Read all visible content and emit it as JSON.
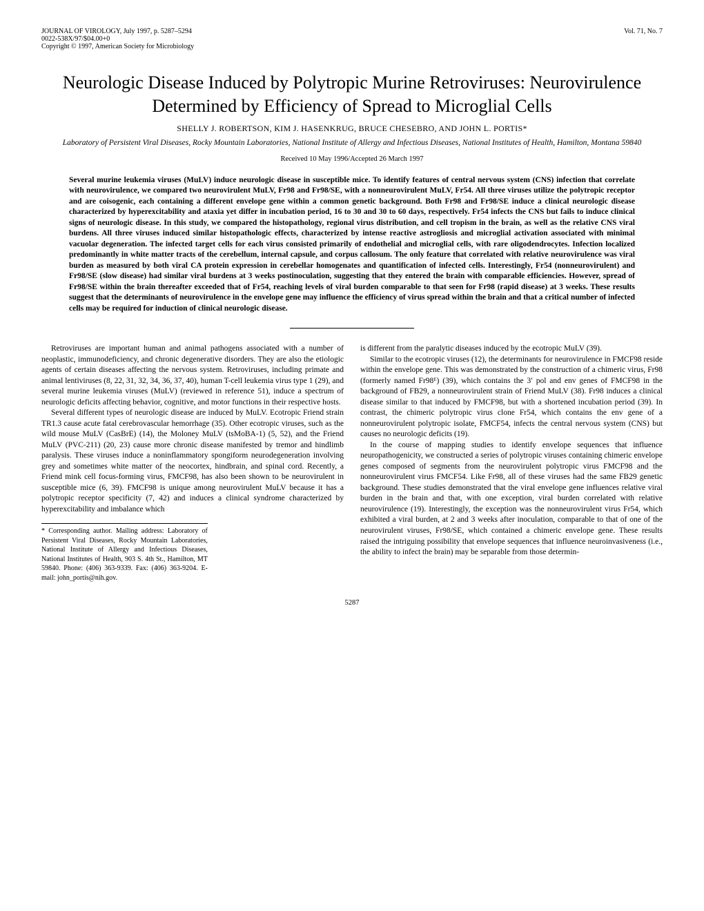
{
  "header": {
    "journal": "JOURNAL OF VIROLOGY, July 1997, p. 5287–5294",
    "issn": "0022-538X/97/$04.00+0",
    "copyright": "Copyright © 1997, American Society for Microbiology",
    "volume": "Vol. 71, No. 7"
  },
  "title": "Neurologic Disease Induced by Polytropic Murine Retroviruses: Neurovirulence Determined by Efficiency of Spread to Microglial Cells",
  "authors": "SHELLY J. ROBERTSON, KIM J. HASENKRUG, BRUCE CHESEBRO, AND JOHN L. PORTIS*",
  "affiliation": "Laboratory of Persistent Viral Diseases, Rocky Mountain Laboratories, National Institute of Allergy and Infectious Diseases, National Institutes of Health, Hamilton, Montana 59840",
  "received": "Received 10 May 1996/Accepted 26 March 1997",
  "abstract": "Several murine leukemia viruses (MuLV) induce neurologic disease in susceptible mice. To identify features of central nervous system (CNS) infection that correlate with neurovirulence, we compared two neurovirulent MuLV, Fr98 and Fr98/SE, with a nonneurovirulent MuLV, Fr54. All three viruses utilize the polytropic receptor and are coisogenic, each containing a different envelope gene within a common genetic background. Both Fr98 and Fr98/SE induce a clinical neurologic disease characterized by hyperexcitability and ataxia yet differ in incubation period, 16 to 30 and 30 to 60 days, respectively. Fr54 infects the CNS but fails to induce clinical signs of neurologic disease. In this study, we compared the histopathology, regional virus distribution, and cell tropism in the brain, as well as the relative CNS viral burdens. All three viruses induced similar histopathologic effects, characterized by intense reactive astrogliosis and microglial activation associated with minimal vacuolar degeneration. The infected target cells for each virus consisted primarily of endothelial and microglial cells, with rare oligodendrocytes. Infection localized predominantly in white matter tracts of the cerebellum, internal capsule, and corpus callosum. The only feature that correlated with relative neurovirulence was viral burden as measured by both viral CA protein expression in cerebellar homogenates and quantification of infected cells. Interestingly, Fr54 (nonneurovirulent) and Fr98/SE (slow disease) had similar viral burdens at 3 weeks postinoculation, suggesting that they entered the brain with comparable efficiencies. However, spread of Fr98/SE within the brain thereafter exceeded that of Fr54, reaching levels of viral burden comparable to that seen for Fr98 (rapid disease) at 3 weeks. These results suggest that the determinants of neurovirulence in the envelope gene may influence the efficiency of virus spread within the brain and that a critical number of infected cells may be required for induction of clinical neurologic disease.",
  "left": {
    "p1": "Retroviruses are important human and animal pathogens associated with a number of neoplastic, immunodeficiency, and chronic degenerative disorders. They are also the etiologic agents of certain diseases affecting the nervous system. Retroviruses, including primate and animal lentiviruses (8, 22, 31, 32, 34, 36, 37, 40), human T-cell leukemia virus type 1 (29), and several murine leukemia viruses (MuLV) (reviewed in reference 51), induce a spectrum of neurologic deficits affecting behavior, cognitive, and motor functions in their respective hosts.",
    "p2": "Several different types of neurologic disease are induced by MuLV. Ecotropic Friend strain TR1.3 cause acute fatal cerebrovascular hemorrhage (35). Other ecotropic viruses, such as the wild mouse MuLV (CasBrE) (14), the Moloney MuLV (tsMoBA-1) (5, 52), and the Friend MuLV (PVC-211) (20, 23) cause more chronic disease manifested by tremor and hindlimb paralysis. These viruses induce a noninflammatory spongiform neurodegeneration involving grey and sometimes white matter of the neocortex, hindbrain, and spinal cord. Recently, a Friend mink cell focus-forming virus, FMCF98, has also been shown to be neurovirulent in susceptible mice (6, 39). FMCF98 is unique among neurovirulent MuLV because it has a polytropic receptor specificity (7, 42) and induces a clinical syndrome characterized by hyperexcitability and imbalance which"
  },
  "right": {
    "p1": "is different from the paralytic diseases induced by the ecotropic MuLV (39).",
    "p2": "Similar to the ecotropic viruses (12), the determinants for neurovirulence in FMCF98 reside within the envelope gene. This was demonstrated by the construction of a chimeric virus, Fr98 (formerly named Fr98ᴱ) (39), which contains the 3′ pol and env genes of FMCF98 in the background of FB29, a nonneurovirulent strain of Friend MuLV (38). Fr98 induces a clinical disease similar to that induced by FMCF98, but with a shortened incubation period (39). In contrast, the chimeric polytropic virus clone Fr54, which contains the env gene of a nonneurovirulent polytropic isolate, FMCF54, infects the central nervous system (CNS) but causes no neurologic deficits (19).",
    "p3": "In the course of mapping studies to identify envelope sequences that influence neuropathogenicity, we constructed a series of polytropic viruses containing chimeric envelope genes composed of segments from the neurovirulent polytropic virus FMCF98 and the nonneurovirulent virus FMCF54. Like Fr98, all of these viruses had the same FB29 genetic background. These studies demonstrated that the viral envelope gene influences relative viral burden in the brain and that, with one exception, viral burden correlated with relative neurovirulence (19). Interestingly, the exception was the nonneurovirulent virus Fr54, which exhibited a viral burden, at 2 and 3 weeks after inoculation, comparable to that of one of the neurovirulent viruses, Fr98/SE, which contained a chimeric envelope gene. These results raised the intriguing possibility that envelope sequences that influence neuroinvasiveness (i.e., the ability to infect the brain) may be separable from those determin-"
  },
  "footnote": "* Corresponding author. Mailing address: Laboratory of Persistent Viral Diseases, Rocky Mountain Laboratories, National Institute of Allergy and Infectious Diseases, National Institutes of Health, 903 S. 4th St., Hamilton, MT 59840. Phone: (406) 363-9339. Fax: (406) 363-9204. E-mail: john_portis@nih.gov.",
  "pagenum": "5287"
}
